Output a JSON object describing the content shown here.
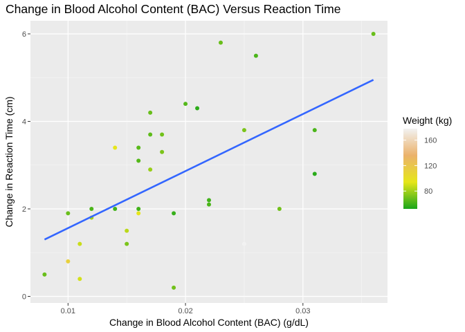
{
  "chart_data": {
    "type": "scatter",
    "title": "Change in Blood Alcohol Content (BAC) Versus Reaction Time",
    "xlabel": "Change in Blood Alcohol Content (BAC) (g/dL)",
    "ylabel": "Change in Reaction Time (cm)",
    "xlim": [
      0.0068,
      0.0372
    ],
    "ylim": [
      -0.15,
      6.3
    ],
    "x_ticks": [
      0.01,
      0.02,
      0.03
    ],
    "x_tick_labels": [
      "0.01",
      "0.02",
      "0.03"
    ],
    "y_ticks": [
      0,
      2,
      4,
      6
    ],
    "y_tick_labels": [
      "0",
      "2",
      "4",
      "6"
    ],
    "grid": true,
    "panel_background": "#ebebeb",
    "legend": {
      "title": "Weight (kg)",
      "position": "right",
      "ticks": [
        80,
        120,
        160
      ],
      "tick_labels": [
        "80",
        "120",
        "160"
      ],
      "range": [
        52,
        178
      ],
      "gradient_colors": [
        "#1aa61a",
        "#e6e619",
        "#ebb26b",
        "#f2f2f2"
      ]
    },
    "series": [
      {
        "points": [
          {
            "x": 0.008,
            "y": 0.5,
            "weight": 68
          },
          {
            "x": 0.01,
            "y": 0.8,
            "weight": 112
          },
          {
            "x": 0.01,
            "y": 1.9,
            "weight": 68
          },
          {
            "x": 0.011,
            "y": 1.2,
            "weight": 88
          },
          {
            "x": 0.011,
            "y": 0.4,
            "weight": 90
          },
          {
            "x": 0.012,
            "y": 2.0,
            "weight": 62
          },
          {
            "x": 0.012,
            "y": 1.8,
            "weight": 80
          },
          {
            "x": 0.014,
            "y": 2.0,
            "weight": 60
          },
          {
            "x": 0.014,
            "y": 3.4,
            "weight": 95
          },
          {
            "x": 0.015,
            "y": 1.5,
            "weight": 85
          },
          {
            "x": 0.015,
            "y": 1.2,
            "weight": 72
          },
          {
            "x": 0.016,
            "y": 3.4,
            "weight": 65
          },
          {
            "x": 0.016,
            "y": 3.1,
            "weight": 64
          },
          {
            "x": 0.016,
            "y": 2.0,
            "weight": 60
          },
          {
            "x": 0.016,
            "y": 1.9,
            "weight": 95
          },
          {
            "x": 0.017,
            "y": 4.2,
            "weight": 68
          },
          {
            "x": 0.017,
            "y": 3.7,
            "weight": 66
          },
          {
            "x": 0.017,
            "y": 2.9,
            "weight": 78
          },
          {
            "x": 0.018,
            "y": 3.7,
            "weight": 70
          },
          {
            "x": 0.018,
            "y": 3.3,
            "weight": 72
          },
          {
            "x": 0.019,
            "y": 1.9,
            "weight": 58
          },
          {
            "x": 0.019,
            "y": 0.2,
            "weight": 70
          },
          {
            "x": 0.02,
            "y": 4.4,
            "weight": 64
          },
          {
            "x": 0.021,
            "y": 4.3,
            "weight": 56
          },
          {
            "x": 0.022,
            "y": 2.2,
            "weight": 60
          },
          {
            "x": 0.022,
            "y": 2.1,
            "weight": 62
          },
          {
            "x": 0.023,
            "y": 5.8,
            "weight": 68
          },
          {
            "x": 0.025,
            "y": 3.8,
            "weight": 72
          },
          {
            "x": 0.025,
            "y": 1.2,
            "weight": 178
          },
          {
            "x": 0.026,
            "y": 5.5,
            "weight": 62
          },
          {
            "x": 0.028,
            "y": 2.0,
            "weight": 70
          },
          {
            "x": 0.031,
            "y": 3.8,
            "weight": 62
          },
          {
            "x": 0.031,
            "y": 2.8,
            "weight": 55
          },
          {
            "x": 0.036,
            "y": 6.0,
            "weight": 68
          }
        ]
      }
    ],
    "trend_line": {
      "x": [
        0.008,
        0.036
      ],
      "y": [
        1.3,
        4.95
      ],
      "color": "#3366ff"
    }
  }
}
